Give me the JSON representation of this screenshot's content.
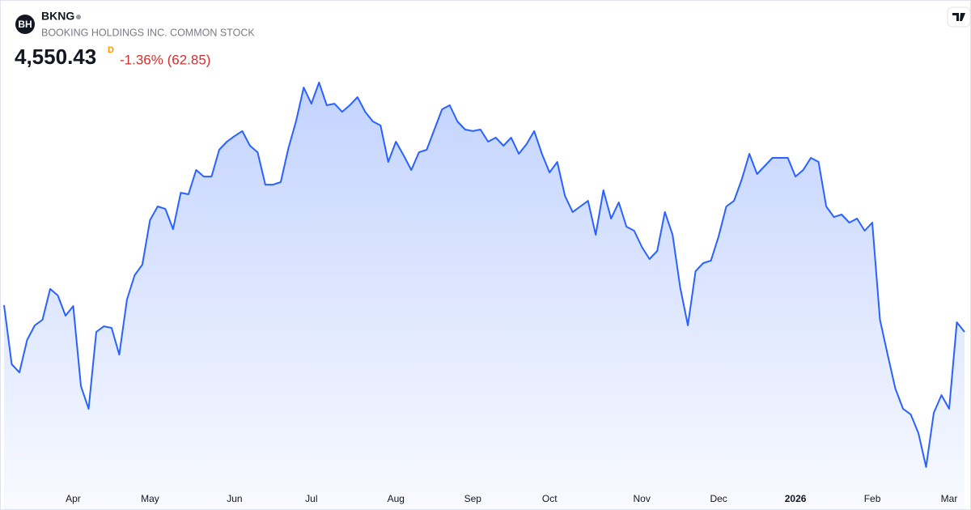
{
  "chart_data": {
    "type": "area",
    "symbol": "BKNG",
    "logo": "BH",
    "title": "BOOKING HOLDINGS INC. COMMON STOCK",
    "price": "4,550.43",
    "interval": "D",
    "change": "-1.36% (62.85)",
    "color": "#2962ff",
    "change_color": "#d32f2f",
    "ylim": [
      3942,
      5862
    ],
    "categories": [
      null,
      null,
      null,
      null,
      null,
      null,
      null,
      null,
      null,
      "Apr",
      null,
      null,
      null,
      null,
      null,
      null,
      null,
      null,
      null,
      "May",
      null,
      null,
      null,
      null,
      null,
      null,
      null,
      null,
      null,
      null,
      "Jun",
      null,
      null,
      null,
      null,
      null,
      null,
      null,
      null,
      null,
      "Jul",
      null,
      null,
      null,
      null,
      null,
      null,
      null,
      null,
      null,
      null,
      "Aug",
      null,
      null,
      null,
      null,
      null,
      null,
      null,
      null,
      null,
      "Sep",
      null,
      null,
      null,
      null,
      null,
      null,
      null,
      null,
      null,
      "Oct",
      null,
      null,
      null,
      null,
      null,
      null,
      null,
      null,
      null,
      null,
      null,
      "Nov",
      null,
      null,
      null,
      null,
      null,
      null,
      null,
      null,
      null,
      "Dec",
      null,
      null,
      null,
      null,
      null,
      null,
      null,
      null,
      null,
      "2026",
      null,
      null,
      null,
      null,
      null,
      null,
      null,
      null,
      null,
      "Feb",
      null,
      null,
      null,
      null,
      null,
      null,
      null,
      null,
      null,
      "Mar",
      null,
      null
    ],
    "bold_categories": [
      "2026"
    ],
    "values": [
      4656,
      4422,
      4390,
      4518,
      4576,
      4598,
      4720,
      4694,
      4614,
      4652,
      4336,
      4246,
      4550,
      4572,
      4566,
      4460,
      4678,
      4774,
      4816,
      4992,
      5046,
      5036,
      4956,
      5100,
      5094,
      5190,
      5164,
      5164,
      5270,
      5302,
      5324,
      5344,
      5286,
      5260,
      5132,
      5132,
      5142,
      5276,
      5382,
      5516,
      5452,
      5536,
      5446,
      5452,
      5420,
      5446,
      5478,
      5420,
      5382,
      5366,
      5222,
      5302,
      5248,
      5190,
      5260,
      5270,
      5350,
      5430,
      5446,
      5382,
      5350,
      5344,
      5350,
      5302,
      5318,
      5286,
      5318,
      5254,
      5292,
      5344,
      5254,
      5180,
      5222,
      5088,
      5024,
      5046,
      5068,
      4934,
      5110,
      4998,
      5062,
      4966,
      4950,
      4886,
      4838,
      4870,
      5024,
      4934,
      4726,
      4576,
      4790,
      4822,
      4832,
      4928,
      5046,
      5068,
      5152,
      5254,
      5174,
      5206,
      5238,
      5238,
      5238,
      5164,
      5190,
      5238,
      5222,
      5046,
      5004,
      5014,
      4982,
      4998,
      4950,
      4982,
      4598,
      4460,
      4326,
      4246,
      4224,
      4150,
      4016,
      4230,
      4300,
      4246,
      4588,
      4550
    ]
  }
}
